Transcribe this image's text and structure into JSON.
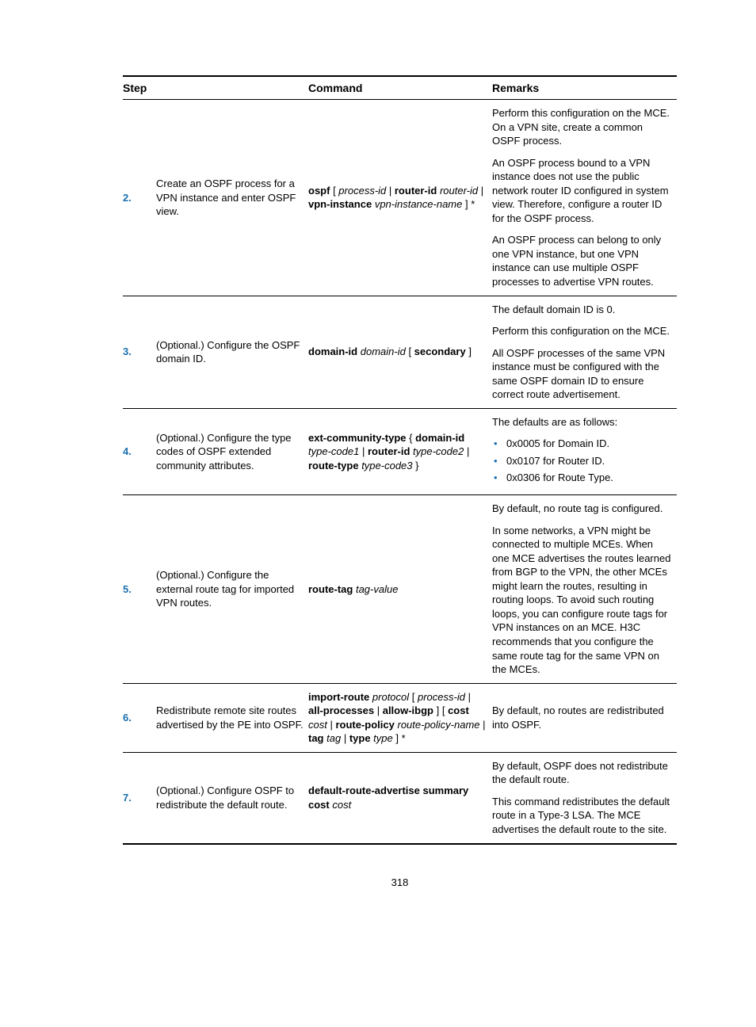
{
  "colors": {
    "accent": "#1a6fb0",
    "text": "#000000",
    "background": "#ffffff",
    "border": "#000000"
  },
  "typography": {
    "body_fontsize_pt": 10,
    "header_fontsize_pt": 10.5,
    "font_family": "Arial / Futura-like sans-serif"
  },
  "table": {
    "type": "table",
    "headers": {
      "step": "Step",
      "command": "Command",
      "remarks": "Remarks"
    }
  },
  "rows": [
    {
      "num": "2.",
      "step": "Create an OSPF process for a VPN instance and enter OSPF view.",
      "cmd": {
        "segments": [
          {
            "t": "ospf",
            "b": true
          },
          {
            "t": " [ "
          },
          {
            "t": "process-id",
            "i": true
          },
          {
            "t": " | "
          },
          {
            "t": "router-id",
            "b": true
          },
          {
            "t": " "
          },
          {
            "t": "router-id",
            "i": true
          },
          {
            "t": " | "
          },
          {
            "t": "vpn-instance",
            "b": true
          },
          {
            "t": " "
          },
          {
            "t": "vpn-instance-name",
            "i": true
          },
          {
            "t": " ] *"
          }
        ]
      },
      "remarks": [
        "Perform this configuration on the MCE. On a VPN site, create a common OSPF process.",
        "An OSPF process bound to a VPN instance does not use the public network router ID configured in system view. Therefore, configure a router ID for the OSPF process.",
        "An OSPF process can belong to only one VPN instance, but one VPN instance can use multiple OSPF processes to advertise VPN routes."
      ]
    },
    {
      "num": "3.",
      "step": "(Optional.) Configure the OSPF domain ID.",
      "cmd": {
        "segments": [
          {
            "t": "domain-id",
            "b": true
          },
          {
            "t": " "
          },
          {
            "t": "domain-id",
            "i": true
          },
          {
            "t": " [ "
          },
          {
            "t": "secondary",
            "b": true
          },
          {
            "t": " ]"
          }
        ]
      },
      "remarks": [
        "The default domain ID is 0.",
        "Perform this configuration on the MCE.",
        "All OSPF processes of the same VPN instance must be configured with the same OSPF domain ID to ensure correct route advertisement."
      ]
    },
    {
      "num": "4.",
      "step": "(Optional.) Configure the type codes of OSPF extended community attributes.",
      "cmd": {
        "segments": [
          {
            "t": "ext-community-type",
            "b": true
          },
          {
            "t": " { "
          },
          {
            "t": "domain-id",
            "b": true
          },
          {
            "t": " "
          },
          {
            "t": "type-code1",
            "i": true
          },
          {
            "t": " | "
          },
          {
            "t": "router-id",
            "b": true
          },
          {
            "t": " "
          },
          {
            "t": "type-code2",
            "i": true
          },
          {
            "t": " | "
          },
          {
            "t": "route-type",
            "b": true
          },
          {
            "t": " "
          },
          {
            "t": "type-code3",
            "i": true
          },
          {
            "t": " }"
          }
        ]
      },
      "remarks_lead": "The defaults are as follows:",
      "remarks_list": [
        "0x0005 for Domain ID.",
        "0x0107 for Router ID.",
        "0x0306 for Route Type."
      ]
    },
    {
      "num": "5.",
      "step": "(Optional.) Configure the external route tag for imported VPN routes.",
      "cmd": {
        "segments": [
          {
            "t": "route-tag",
            "b": true
          },
          {
            "t": " "
          },
          {
            "t": "tag-value",
            "i": true
          }
        ]
      },
      "remarks": [
        "By default, no route tag is configured.",
        "In some networks, a VPN might be connected to multiple MCEs. When one MCE advertises the routes learned from BGP to the VPN, the other MCEs might learn the routes, resulting in routing loops. To avoid such routing loops, you can configure route tags for VPN instances on an MCE. H3C recommends that you configure the same route tag for the same VPN on the MCEs."
      ]
    },
    {
      "num": "6.",
      "step": "Redistribute remote site routes advertised by the PE into OSPF.",
      "cmd": {
        "segments": [
          {
            "t": "import-route",
            "b": true
          },
          {
            "t": " "
          },
          {
            "t": "protocol",
            "i": true
          },
          {
            "t": " [ "
          },
          {
            "t": "process-id",
            "i": true
          },
          {
            "t": " | "
          },
          {
            "t": "all-processes",
            "b": true
          },
          {
            "t": " | "
          },
          {
            "t": "allow-ibgp",
            "b": true
          },
          {
            "t": " ] [ "
          },
          {
            "t": "cost",
            "b": true
          },
          {
            "t": " "
          },
          {
            "t": "cost",
            "i": true
          },
          {
            "t": " | "
          },
          {
            "t": "route-policy",
            "b": true
          },
          {
            "t": " "
          },
          {
            "t": "route-policy-name",
            "i": true
          },
          {
            "t": " | "
          },
          {
            "t": "tag",
            "b": true
          },
          {
            "t": " "
          },
          {
            "t": "tag",
            "i": true
          },
          {
            "t": " | "
          },
          {
            "t": "type",
            "b": true
          },
          {
            "t": " "
          },
          {
            "t": "type",
            "i": true
          },
          {
            "t": " ] *"
          }
        ]
      },
      "remarks": [
        "By default, no routes are redistributed into OSPF."
      ]
    },
    {
      "num": "7.",
      "step": "(Optional.) Configure OSPF to redistribute the default route.",
      "cmd": {
        "segments": [
          {
            "t": "default-route-advertise summary cost",
            "b": true
          },
          {
            "t": " "
          },
          {
            "t": "cost",
            "i": true
          }
        ]
      },
      "remarks": [
        "By default, OSPF does not redistribute the default route.",
        "This command redistributes the default route in a Type-3 LSA. The MCE advertises the default route to the site."
      ]
    }
  ],
  "page_number": "318"
}
